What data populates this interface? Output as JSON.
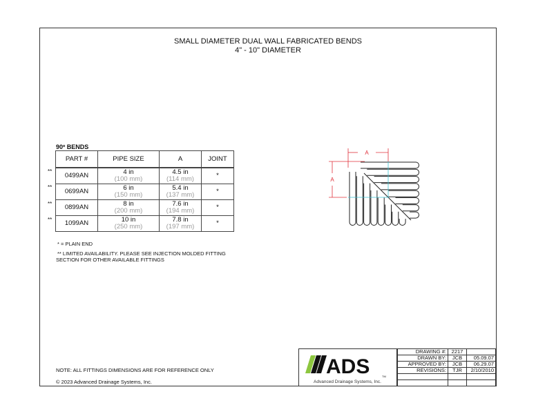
{
  "title": {
    "line1": "SMALL DIAMETER DUAL WALL FABRICATED BENDS",
    "line2": "4\" - 10\" DIAMETER"
  },
  "section_label": "90º BENDS",
  "table": {
    "headers": [
      "PART #",
      "PIPE SIZE",
      "A",
      "JOINT"
    ],
    "rows": [
      {
        "marker": "**",
        "part": "0499AN",
        "size_in": "4 in",
        "size_mm": "(100 mm)",
        "a_in": "4.5 in",
        "a_mm": "(114 mm)",
        "joint": "*"
      },
      {
        "marker": "**",
        "part": "0699AN",
        "size_in": "6 in",
        "size_mm": "(150 mm)",
        "a_in": "5.4 in",
        "a_mm": "(137 mm)",
        "joint": "*"
      },
      {
        "marker": "**",
        "part": "0899AN",
        "size_in": "8 in",
        "size_mm": "(200 mm)",
        "a_in": "7.6 in",
        "a_mm": "(194 mm)",
        "joint": "*"
      },
      {
        "marker": "**",
        "part": "1099AN",
        "size_in": "10 in",
        "size_mm": "(250 mm)",
        "a_in": "7.8 in",
        "a_mm": "(197 mm)",
        "joint": "*"
      }
    ]
  },
  "notes": {
    "plain_end": "* = PLAIN END",
    "limited_1": "** LIMITED AVAILABILITY. PLEASE SEE INJECTION MOLDED FITTING",
    "limited_2": "SECTION FOR OTHER AVAILABLE FITTINGS",
    "reference": "NOTE: ALL FITTINGS DIMENSIONS ARE FOR REFERENCE ONLY",
    "copyright": "© 2023 Advanced Drainage Systems, Inc."
  },
  "drawing": {
    "dim_label_h": "A",
    "dim_label_v": "A",
    "dim_color": "#e0303a",
    "centerline_color": "#3cc0d0"
  },
  "logo": {
    "text": "ADS",
    "subtitle": "Advanced Drainage Systems, Inc.",
    "tm": "TM",
    "accent": "#8dc63f"
  },
  "title_block": [
    {
      "label": "DRAWING #:",
      "by": "2217",
      "date": ""
    },
    {
      "label": "DRAWN BY:",
      "by": "JCB",
      "date": "05.09.07"
    },
    {
      "label": "APPROVED BY:",
      "by": "JCB",
      "date": "06.29.07"
    },
    {
      "label": "REVISIONS:",
      "by": "TJR",
      "date": "2/10/2010"
    },
    {
      "label": "",
      "by": "",
      "date": ""
    },
    {
      "label": "",
      "by": "",
      "date": ""
    }
  ]
}
